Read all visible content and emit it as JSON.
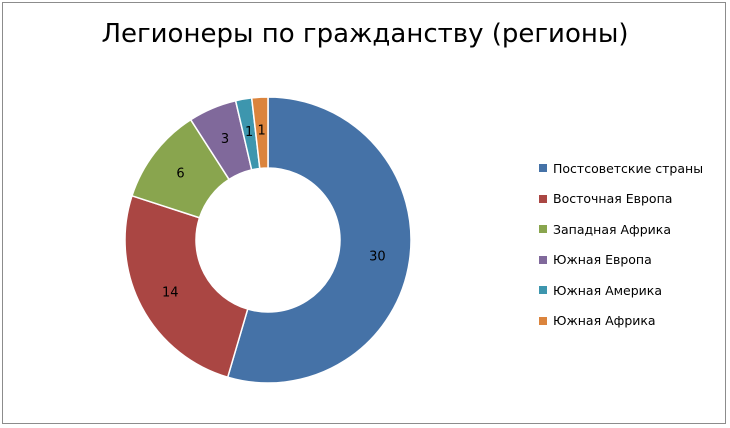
{
  "chart_data": {
    "type": "pie",
    "variant": "doughnut",
    "title": "Легионеры по гражданству (регионы)",
    "categories": [
      "Постсоветские страны",
      "Восточная Европа",
      "Западная Африка",
      "Южная Европа",
      "Южная Америка",
      "Южная Африка"
    ],
    "values": [
      30,
      14,
      6,
      3,
      1,
      1
    ],
    "data_labels": [
      "30",
      "14",
      "6",
      "3",
      "1",
      "1"
    ],
    "colors": [
      "#4572A7",
      "#AA4643",
      "#89A54E",
      "#80699B",
      "#3D96AE",
      "#DB843D"
    ],
    "legend": "right"
  }
}
